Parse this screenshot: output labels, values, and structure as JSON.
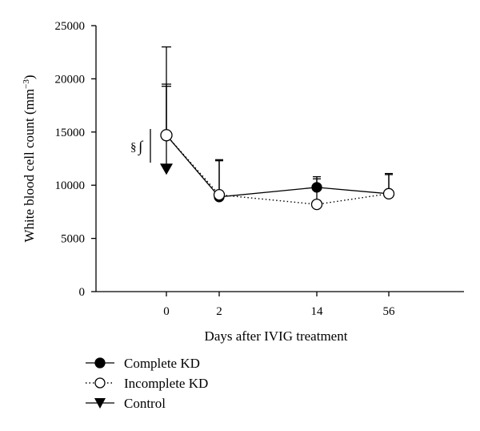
{
  "chart_data": {
    "type": "line",
    "title": "",
    "xlabel": "Days after IVIG treatment",
    "ylabel": "White blood cell count (mm",
    "ylabel_unit_exponent": "−3",
    "ylabel_close": ")",
    "categories": [
      "0",
      "2",
      "14",
      "56"
    ],
    "ylim": [
      0,
      25000
    ],
    "yticks": [
      "0",
      "5000",
      "10000",
      "15000",
      "20000",
      "25000"
    ],
    "series": [
      {
        "name": "Complete KD",
        "marker": "filled-circle",
        "line": "solid",
        "values": [
          14700,
          8900,
          9800,
          9200
        ],
        "error_upper": [
          23000,
          12300,
          10800,
          11000
        ]
      },
      {
        "name": "Incomplete KD",
        "marker": "open-circle",
        "line": "dotted",
        "values": [
          14700,
          9100,
          8200,
          9200
        ],
        "error_upper": [
          19300,
          12400,
          10600,
          11100
        ]
      },
      {
        "name": "Control",
        "marker": "filled-triangle-down",
        "line": "none",
        "values": [
          11500,
          null,
          null,
          null
        ],
        "error_upper": [
          19500,
          null,
          null,
          null
        ]
      }
    ],
    "annotation": "§",
    "annotation_symbol": "∫",
    "legend_position": "bottom-left"
  }
}
